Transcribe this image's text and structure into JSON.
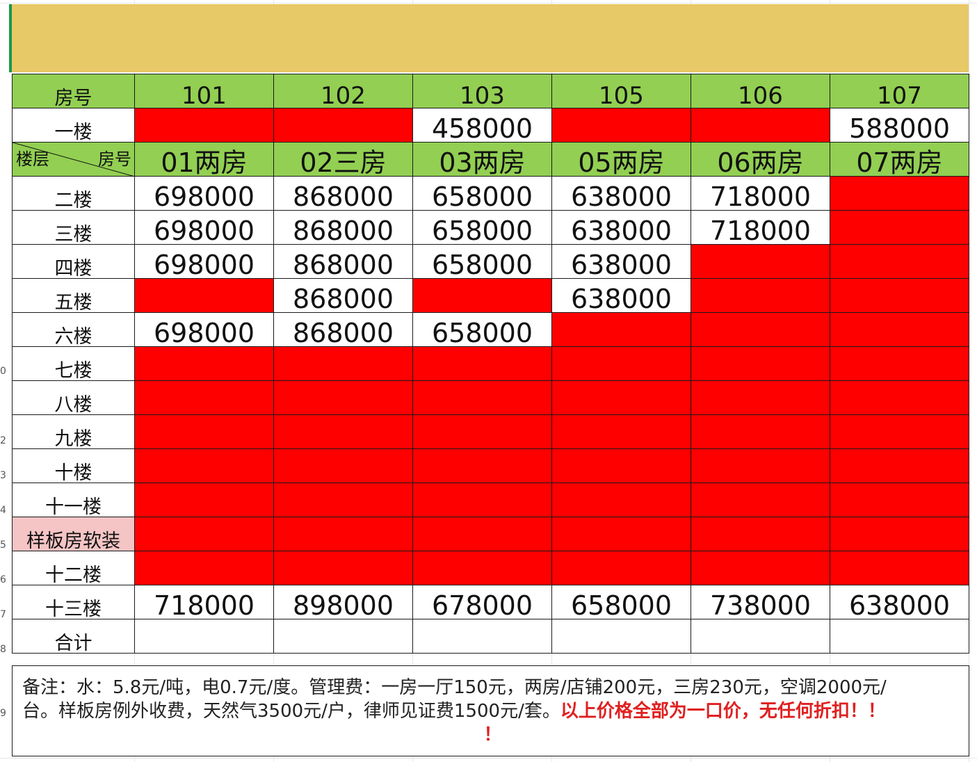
{
  "row_numbers": [
    "0",
    "2",
    "3",
    "4",
    "5",
    "6",
    "7",
    "8",
    "9"
  ],
  "header": {
    "corner_label": "房号",
    "rooms": [
      "101",
      "102",
      "103",
      "105",
      "106",
      "107"
    ]
  },
  "first_floor": {
    "label": "一楼",
    "cells": [
      {
        "status": "sold",
        "price": ""
      },
      {
        "status": "sold",
        "price": ""
      },
      {
        "status": "available",
        "price": "458000"
      },
      {
        "status": "sold",
        "price": ""
      },
      {
        "status": "sold",
        "price": ""
      },
      {
        "status": "available",
        "price": "588000"
      }
    ]
  },
  "type_header": {
    "floor_label": "楼层",
    "room_label": "房号",
    "types": [
      "01两房",
      "02三房",
      "03两房",
      "05两房",
      "06两房",
      "07两房"
    ]
  },
  "floors": [
    {
      "label": "二楼",
      "cells": [
        "698000",
        "868000",
        "658000",
        "638000",
        "718000",
        ""
      ]
    },
    {
      "label": "三楼",
      "cells": [
        "698000",
        "868000",
        "658000",
        "638000",
        "718000",
        ""
      ]
    },
    {
      "label": "四楼",
      "cells": [
        "698000",
        "868000",
        "658000",
        "638000",
        "",
        ""
      ]
    },
    {
      "label": "五楼",
      "cells": [
        "",
        "868000",
        "",
        "638000",
        "",
        ""
      ]
    },
    {
      "label": "六楼",
      "cells": [
        "698000",
        "868000",
        "658000",
        "",
        "",
        ""
      ]
    },
    {
      "label": "七楼",
      "cells": [
        "",
        "",
        "",
        "",
        "",
        ""
      ]
    },
    {
      "label": "八楼",
      "cells": [
        "",
        "",
        "",
        "",
        "",
        ""
      ]
    },
    {
      "label": "九楼",
      "cells": [
        "",
        "",
        "",
        "",
        "",
        ""
      ]
    },
    {
      "label": "十楼",
      "cells": [
        "",
        "",
        "",
        "",
        "",
        ""
      ]
    },
    {
      "label": "十一楼",
      "cells": [
        "",
        "",
        "",
        "",
        "",
        ""
      ]
    },
    {
      "label": "样板房软装",
      "highlight": "pink",
      "cells": [
        "",
        "",
        "",
        "",
        "",
        ""
      ]
    },
    {
      "label": "十二楼",
      "cells": [
        "",
        "",
        "",
        "",
        "",
        ""
      ]
    },
    {
      "label": "十三楼",
      "cells": [
        "718000",
        "898000",
        "678000",
        "658000",
        "738000",
        "638000"
      ]
    }
  ],
  "total_row": {
    "label": "合计"
  },
  "notes": {
    "line1": "备注：水：5.8元/吨，电0.7元/度。管理费：一房一厅150元，两房/店铺200元，三房230元，空调2000元/",
    "line2_normal": "台。样板房例外收费，天然气3500元/户，律师见证费1500元/套。",
    "line2_warning": "以上价格全部为一口价，无任何折扣！！",
    "line3_warning": "！"
  },
  "colors": {
    "title_bar": "#e8c967",
    "header_green": "#92cf52",
    "sold_red": "#fe0000",
    "sample_pink": "#f5c4c4",
    "warning_text": "#e02020"
  }
}
